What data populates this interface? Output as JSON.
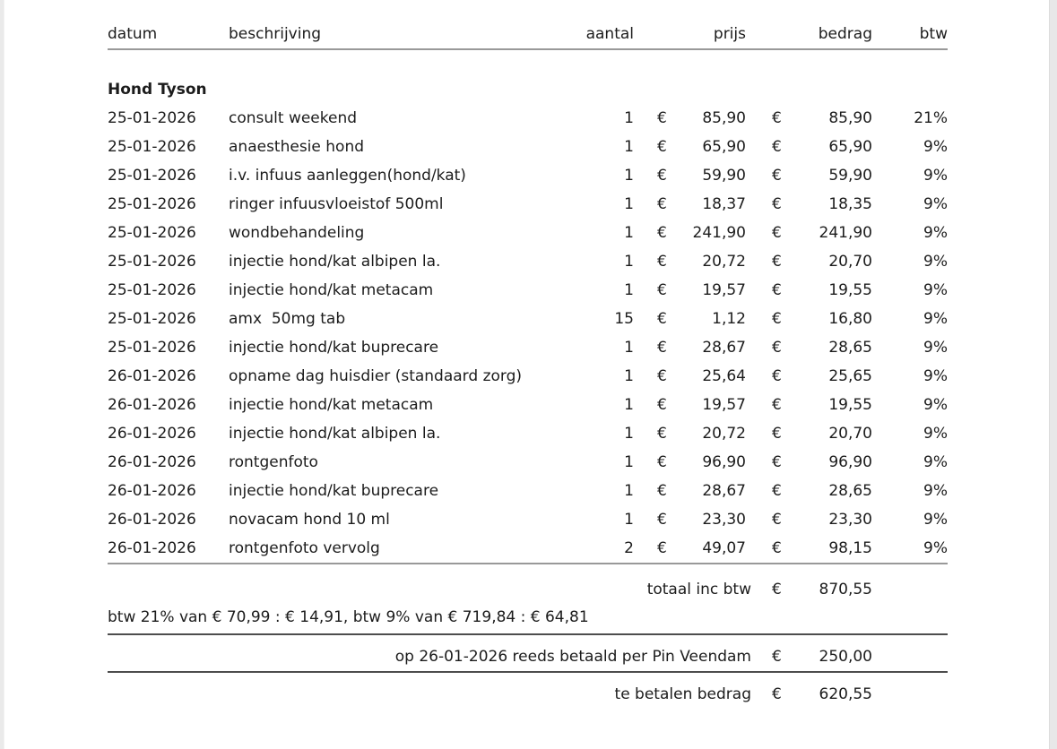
{
  "page": {
    "background": "#ffffff",
    "edge_strip_color": "#e8e8e8",
    "rule_light_color": "#999999",
    "rule_dark_color": "#4d4d4d",
    "text_color": "#1c1c1c"
  },
  "table": {
    "headers": {
      "datum": "datum",
      "beschrijving": "beschrijving",
      "aantal": "aantal",
      "prijs": "prijs",
      "bedrag": "bedrag",
      "btw": "btw"
    },
    "group_title": "Hond Tyson",
    "currency": "€",
    "rows": [
      {
        "date": "25-01-2026",
        "description": "consult weekend",
        "qty": "1",
        "price": "85,90",
        "amount": "85,90",
        "vat": "21%"
      },
      {
        "date": "25-01-2026",
        "description": "anaesthesie hond",
        "qty": "1",
        "price": "65,90",
        "amount": "65,90",
        "vat": "9%"
      },
      {
        "date": "25-01-2026",
        "description": "i.v. infuus aanleggen(hond/kat)",
        "qty": "1",
        "price": "59,90",
        "amount": "59,90",
        "vat": "9%"
      },
      {
        "date": "25-01-2026",
        "description": "ringer infuusvloeistof 500ml",
        "qty": "1",
        "price": "18,37",
        "amount": "18,35",
        "vat": "9%"
      },
      {
        "date": "25-01-2026",
        "description": "wondbehandeling",
        "qty": "1",
        "price": "241,90",
        "amount": "241,90",
        "vat": "9%"
      },
      {
        "date": "25-01-2026",
        "description": "injectie hond/kat albipen la.",
        "qty": "1",
        "price": "20,72",
        "amount": "20,70",
        "vat": "9%"
      },
      {
        "date": "25-01-2026",
        "description": "injectie hond/kat metacam",
        "qty": "1",
        "price": "19,57",
        "amount": "19,55",
        "vat": "9%"
      },
      {
        "date": "25-01-2026",
        "description": "amx  50mg tab",
        "qty": "15",
        "price": "1,12",
        "amount": "16,80",
        "vat": "9%"
      },
      {
        "date": "25-01-2026",
        "description": "injectie hond/kat buprecare",
        "qty": "1",
        "price": "28,67",
        "amount": "28,65",
        "vat": "9%"
      },
      {
        "date": "26-01-2026",
        "description": "opname dag huisdier (standaard zorg)",
        "qty": "1",
        "price": "25,64",
        "amount": "25,65",
        "vat": "9%"
      },
      {
        "date": "26-01-2026",
        "description": "injectie hond/kat metacam",
        "qty": "1",
        "price": "19,57",
        "amount": "19,55",
        "vat": "9%"
      },
      {
        "date": "26-01-2026",
        "description": "injectie hond/kat albipen la.",
        "qty": "1",
        "price": "20,72",
        "amount": "20,70",
        "vat": "9%"
      },
      {
        "date": "26-01-2026",
        "description": "rontgenfoto",
        "qty": "1",
        "price": "96,90",
        "amount": "96,90",
        "vat": "9%"
      },
      {
        "date": "26-01-2026",
        "description": "injectie hond/kat buprecare",
        "qty": "1",
        "price": "28,67",
        "amount": "28,65",
        "vat": "9%"
      },
      {
        "date": "26-01-2026",
        "description": "novacam hond 10 ml",
        "qty": "1",
        "price": "23,30",
        "amount": "23,30",
        "vat": "9%"
      },
      {
        "date": "26-01-2026",
        "description": "rontgenfoto vervolg",
        "qty": "2",
        "price": "49,07",
        "amount": "98,15",
        "vat": "9%"
      }
    ]
  },
  "totals": {
    "currency": "€",
    "total_incl_vat_label": "totaal inc btw",
    "total_incl_vat_amount": "870,55",
    "vat_breakdown": "btw 21% van € 70,99 : € 14,91, btw 9% van € 719,84 : € 64,81",
    "paid_label": "op 26-01-2026 reeds betaald per Pin Veendam",
    "paid_amount": "250,00",
    "amount_due_label": "te betalen bedrag",
    "amount_due_amount": "620,55"
  }
}
